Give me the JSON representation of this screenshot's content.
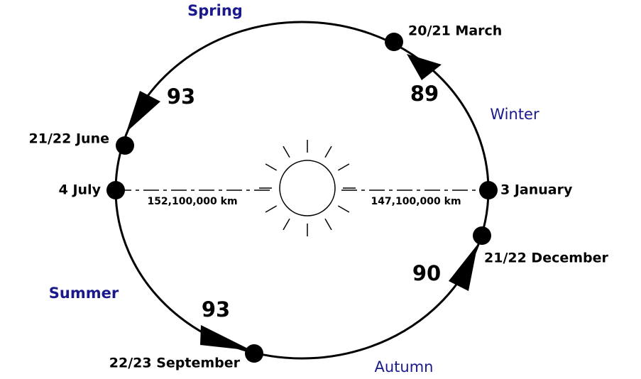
{
  "seasons": [
    "Spring",
    "Winter",
    "Summer",
    "Autumn"
  ],
  "dates": [
    "20/21 March",
    "21/22 June",
    "4 July",
    "3 January",
    "21/22 December",
    "22/23 September"
  ],
  "day_counts": [
    93,
    89,
    90,
    93
  ],
  "distances": [
    "152,100,000 km",
    "147,100,000 km"
  ]
}
